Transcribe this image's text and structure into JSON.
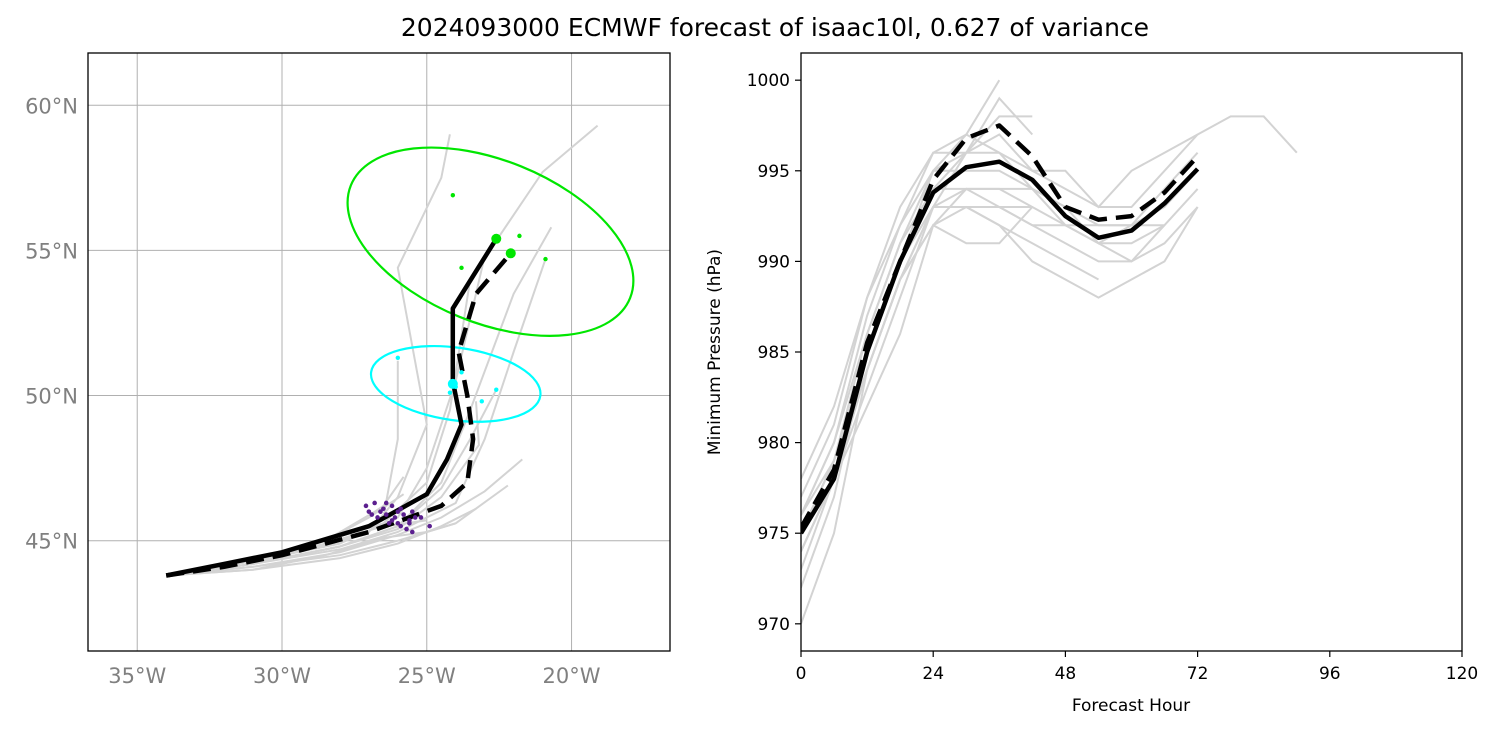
{
  "title": "2024093000 ECMWF forecast of isaac10l, 0.627 of variance",
  "colors": {
    "ensemble": "#d3d3d3",
    "mean": "#000000",
    "grid": "#b0b0b0",
    "map_tick": "#808080",
    "ellipse_48h": "#00ffff",
    "ellipse_72h": "#00e600",
    "scatter_0h": "#5b1f8f"
  },
  "chart_data": [
    {
      "type": "line",
      "panel": "track map",
      "xlabel": "",
      "ylabel": "",
      "xlim": [
        -36.7,
        -16.6
      ],
      "ylim": [
        41.2,
        61.8
      ],
      "x_ticks": [
        -35,
        -30,
        -25,
        -20
      ],
      "y_ticks": [
        45,
        50,
        55,
        60
      ],
      "x_tick_labels": [
        "35°W",
        "30°W",
        "25°W",
        "20°W"
      ],
      "y_tick_labels": [
        "45°N",
        "50°N",
        "55°N",
        "60°N"
      ],
      "grid": true,
      "ensemble_tracks": [
        [
          [
            -34.0,
            43.8
          ],
          [
            -31.5,
            44.3
          ],
          [
            -29.0,
            44.7
          ],
          [
            -27.0,
            45.3
          ],
          [
            -26.0,
            46.5
          ],
          [
            -25.0,
            49.0
          ],
          [
            -26.0,
            54.4
          ],
          [
            -24.5,
            57.5
          ],
          [
            -24.2,
            59.0
          ]
        ],
        [
          [
            -34.0,
            43.8
          ],
          [
            -31.0,
            44.4
          ],
          [
            -28.5,
            45.0
          ],
          [
            -26.5,
            45.6
          ],
          [
            -25.0,
            47.0
          ],
          [
            -24.2,
            49.5
          ],
          [
            -23.5,
            54.0
          ],
          [
            -21.0,
            57.7
          ],
          [
            -19.1,
            59.3
          ]
        ],
        [
          [
            -34.0,
            43.8
          ],
          [
            -31.0,
            44.3
          ],
          [
            -28.0,
            44.9
          ],
          [
            -26.0,
            45.8
          ],
          [
            -25.0,
            47.5
          ],
          [
            -24.0,
            50.5
          ],
          [
            -23.0,
            54.8
          ]
        ],
        [
          [
            -34.0,
            43.8
          ],
          [
            -31.0,
            44.2
          ],
          [
            -28.0,
            44.8
          ],
          [
            -26.0,
            45.5
          ],
          [
            -24.5,
            47.0
          ],
          [
            -23.5,
            49.5
          ],
          [
            -22.0,
            53.5
          ],
          [
            -20.7,
            55.8
          ]
        ],
        [
          [
            -34.0,
            43.8
          ],
          [
            -31.0,
            44.2
          ],
          [
            -28.0,
            44.7
          ],
          [
            -26.0,
            45.3
          ],
          [
            -24.0,
            46.3
          ],
          [
            -23.0,
            48.5
          ],
          [
            -22.0,
            51.5
          ],
          [
            -20.9,
            54.7
          ]
        ],
        [
          [
            -34.0,
            43.8
          ],
          [
            -31.0,
            44.3
          ],
          [
            -28.0,
            44.9
          ],
          [
            -26.5,
            45.8
          ],
          [
            -26.0,
            48.5
          ],
          [
            -26.0,
            51.2
          ]
        ],
        [
          [
            -34.0,
            43.8
          ],
          [
            -31.0,
            44.2
          ],
          [
            -28.0,
            44.8
          ],
          [
            -26.0,
            45.4
          ],
          [
            -24.5,
            46.5
          ],
          [
            -23.2,
            48.3
          ],
          [
            -23.3,
            49.8
          ]
        ],
        [
          [
            -34.0,
            43.8
          ],
          [
            -31.0,
            44.2
          ],
          [
            -28.0,
            44.8
          ],
          [
            -26.0,
            45.5
          ],
          [
            -24.5,
            46.8
          ],
          [
            -23.5,
            48.5
          ],
          [
            -22.6,
            50.2
          ]
        ],
        [
          [
            -34.0,
            43.8
          ],
          [
            -31.0,
            44.1
          ],
          [
            -28.0,
            44.6
          ],
          [
            -26.0,
            45.2
          ],
          [
            -24.5,
            45.8
          ],
          [
            -23.0,
            46.7
          ],
          [
            -21.7,
            47.8
          ]
        ],
        [
          [
            -34.0,
            43.8
          ],
          [
            -31.0,
            44.1
          ],
          [
            -28.0,
            44.5
          ],
          [
            -26.0,
            45.0
          ],
          [
            -24.0,
            45.6
          ],
          [
            -22.2,
            46.9
          ]
        ],
        [
          [
            -34.0,
            43.8
          ],
          [
            -31.0,
            44.0
          ],
          [
            -28.0,
            44.4
          ],
          [
            -26.0,
            44.9
          ],
          [
            -24.5,
            45.5
          ],
          [
            -23.3,
            46.1
          ]
        ],
        [
          [
            -34.0,
            43.8
          ],
          [
            -31.0,
            44.3
          ],
          [
            -28.5,
            44.9
          ],
          [
            -26.5,
            45.5
          ],
          [
            -25.0,
            45.7
          ]
        ],
        [
          [
            -34.0,
            43.8
          ],
          [
            -31.0,
            44.2
          ],
          [
            -28.5,
            45.0
          ],
          [
            -27.0,
            45.8
          ],
          [
            -25.8,
            46.6
          ]
        ],
        [
          [
            -34.0,
            43.8
          ],
          [
            -31.0,
            44.3
          ],
          [
            -28.5,
            45.0
          ],
          [
            -26.8,
            46.0
          ],
          [
            -26.5,
            46.2
          ],
          [
            -25.8,
            47.2
          ]
        ],
        [
          [
            -34.0,
            43.8
          ],
          [
            -31.0,
            44.0
          ],
          [
            -28.5,
            44.5
          ],
          [
            -26.5,
            45.1
          ],
          [
            -25.0,
            45.3
          ],
          [
            -24.0,
            45.6
          ]
        ]
      ],
      "mean_track": [
        [
          -34.0,
          43.8
        ],
        [
          -32.0,
          44.2
        ],
        [
          -30.0,
          44.6
        ],
        [
          -27.0,
          45.5
        ],
        [
          -25.0,
          46.6
        ],
        [
          -24.3,
          47.8
        ],
        [
          -23.8,
          49.0
        ],
        [
          -24.1,
          50.5
        ],
        [
          -24.1,
          53.0
        ],
        [
          -22.6,
          55.4
        ]
      ],
      "mean_track_dashed": [
        [
          -34.0,
          43.8
        ],
        [
          -32.0,
          44.1
        ],
        [
          -30.0,
          44.5
        ],
        [
          -27.0,
          45.3
        ],
        [
          -24.5,
          46.2
        ],
        [
          -23.6,
          47.0
        ],
        [
          -23.4,
          48.5
        ],
        [
          -23.6,
          50.0
        ],
        [
          -23.9,
          51.5
        ],
        [
          -23.3,
          53.5
        ],
        [
          -22.1,
          54.9
        ]
      ],
      "scatter_0h": [
        [
          -27.1,
          46.2
        ],
        [
          -26.8,
          46.3
        ],
        [
          -26.5,
          46.1
        ],
        [
          -26.2,
          46.2
        ],
        [
          -26.0,
          46.0
        ],
        [
          -25.8,
          45.9
        ],
        [
          -25.6,
          45.7
        ],
        [
          -25.9,
          45.5
        ],
        [
          -26.3,
          45.6
        ],
        [
          -26.7,
          45.8
        ],
        [
          -27.0,
          46.0
        ],
        [
          -26.4,
          45.9
        ],
        [
          -26.1,
          45.8
        ],
        [
          -25.7,
          45.4
        ],
        [
          -25.5,
          45.3
        ],
        [
          -25.4,
          45.8
        ],
        [
          -26.2,
          45.7
        ],
        [
          -26.6,
          46.0
        ],
        [
          -25.2,
          45.8
        ],
        [
          -24.9,
          45.5
        ],
        [
          -25.9,
          46.1
        ],
        [
          -26.9,
          45.9
        ],
        [
          -25.6,
          45.6
        ],
        [
          -26.4,
          46.3
        ],
        [
          -25.5,
          46.0
        ],
        [
          -26.0,
          45.6
        ]
      ],
      "scatter_48h": [
        [
          -26.0,
          51.3
        ],
        [
          -24.1,
          50.5
        ],
        [
          -24.0,
          50.3
        ],
        [
          -23.8,
          50.8
        ],
        [
          -24.2,
          50.1
        ],
        [
          -23.1,
          49.8
        ],
        [
          -22.6,
          50.2
        ]
      ],
      "mean_48h": [
        [
          -24.1,
          50.4
        ]
      ],
      "scatter_72h": [
        [
          -24.1,
          56.9
        ],
        [
          -23.8,
          54.4
        ],
        [
          -21.8,
          55.5
        ],
        [
          -20.9,
          54.7
        ]
      ],
      "mean_72h": [
        [
          -22.6,
          55.4
        ],
        [
          -22.1,
          54.9
        ]
      ],
      "ellipse_48h": {
        "center": [
          -24.0,
          50.4
        ],
        "semi_axes_deg": [
          2.95,
          1.25
        ],
        "angle_deg": -8
      },
      "ellipse_72h": {
        "center": [
          -22.8,
          55.3
        ],
        "semi_axes_deg": [
          5.2,
          2.8
        ],
        "angle_deg": -22
      }
    },
    {
      "type": "line",
      "panel": "pressure",
      "title": "",
      "xlabel": "Forecast Hour",
      "ylabel": "Minimum Pressure (hPa)",
      "xlim": [
        0,
        120
      ],
      "ylim": [
        968.5,
        1001.5
      ],
      "x_ticks": [
        0,
        24,
        48,
        72,
        96,
        120
      ],
      "y_ticks": [
        970,
        975,
        980,
        985,
        990,
        995,
        1000
      ],
      "grid": false,
      "x": [
        0,
        6,
        12,
        18,
        24,
        30,
        36,
        42,
        48,
        54,
        60,
        66,
        72,
        78,
        84,
        90
      ],
      "series": [
        {
          "role": "ensemble",
          "values": [
            970,
            975,
            984,
            989,
            993,
            996,
            998,
            998,
            null,
            null,
            null,
            null,
            null,
            null,
            null,
            null
          ]
        },
        {
          "role": "ensemble",
          "values": [
            972,
            977,
            985,
            990,
            995,
            997,
            1000,
            null,
            null,
            null,
            null,
            null,
            null,
            null,
            null,
            null
          ]
        },
        {
          "role": "ensemble",
          "values": [
            974,
            978,
            985,
            990,
            994,
            996,
            999,
            997,
            null,
            null,
            null,
            null,
            null,
            null,
            null,
            null
          ]
        },
        {
          "role": "ensemble",
          "values": [
            975,
            979,
            986,
            991,
            995,
            996,
            997,
            995,
            995,
            993,
            995,
            996,
            997,
            998,
            998,
            996
          ]
        },
        {
          "role": "ensemble",
          "values": [
            976,
            980,
            987,
            992,
            996,
            996,
            996,
            995,
            994,
            993,
            993,
            995,
            997,
            null,
            null,
            null
          ]
        },
        {
          "role": "ensemble",
          "values": [
            977,
            981,
            988,
            993,
            996,
            997,
            996,
            994,
            993,
            991,
            992,
            994,
            996,
            null,
            null,
            null
          ]
        },
        {
          "role": "ensemble",
          "values": [
            978,
            982,
            988,
            992,
            995,
            995,
            995,
            994,
            993,
            992,
            992,
            993,
            995,
            null,
            null,
            null
          ]
        },
        {
          "role": "ensemble",
          "values": [
            976,
            980,
            986,
            991,
            994,
            994,
            994,
            994,
            992,
            991,
            991,
            992,
            994,
            null,
            null,
            null
          ]
        },
        {
          "role": "ensemble",
          "values": [
            975,
            979,
            985,
            990,
            993,
            993,
            993,
            993,
            992,
            991,
            990,
            991,
            993,
            null,
            null,
            null
          ]
        },
        {
          "role": "ensemble",
          "values": [
            975,
            979,
            985,
            990,
            993,
            993,
            993,
            992,
            992,
            992,
            992,
            992,
            null,
            null,
            null,
            null
          ]
        },
        {
          "role": "ensemble",
          "values": [
            974,
            978,
            984,
            989,
            993,
            994,
            993,
            992,
            991,
            990,
            990,
            992,
            null,
            null,
            null,
            null
          ]
        },
        {
          "role": "ensemble",
          "values": [
            973,
            978,
            983,
            988,
            993,
            993,
            992,
            991,
            990,
            989,
            null,
            null,
            null,
            null,
            null,
            null
          ]
        },
        {
          "role": "ensemble",
          "values": [
            975,
            979,
            984,
            989,
            992,
            993,
            992,
            990,
            989,
            988,
            989,
            990,
            993,
            null,
            null,
            null
          ]
        },
        {
          "role": "ensemble",
          "values": [
            974,
            978,
            982,
            986,
            992,
            991,
            991,
            993,
            null,
            null,
            null,
            null,
            null,
            null,
            null,
            null
          ]
        },
        {
          "role": "ensemble",
          "values": [
            976,
            979,
            984,
            989,
            992,
            994,
            994,
            993,
            null,
            null,
            null,
            null,
            null,
            null,
            null,
            null
          ]
        },
        {
          "role": "mean",
          "style": "solid",
          "values": [
            975,
            978,
            985,
            990,
            993.8,
            995.2,
            995.5,
            994.5,
            992.5,
            991.3,
            991.7,
            993.2,
            995.1,
            null,
            null,
            null
          ]
        },
        {
          "role": "mean",
          "style": "dashed",
          "values": [
            975.3,
            978.5,
            985.5,
            990,
            994.5,
            996.8,
            997.5,
            995.8,
            993,
            992.3,
            992.5,
            993.8,
            995.8,
            null,
            null,
            null
          ]
        }
      ]
    }
  ]
}
